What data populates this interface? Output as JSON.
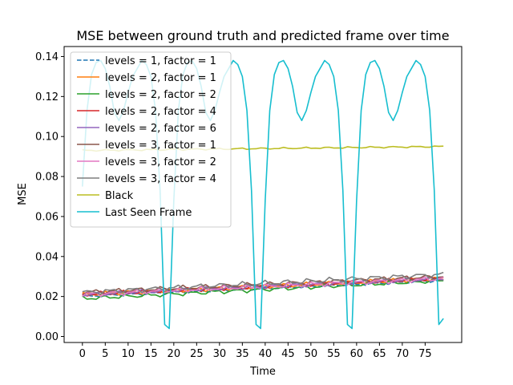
{
  "chart_data": {
    "type": "line",
    "title": "MSE between ground truth and predicted frame over time",
    "xlabel": "Time",
    "ylabel": "MSE",
    "xlim": [
      -4,
      83
    ],
    "ylim": [
      -0.003,
      0.145
    ],
    "xticks": [
      0,
      5,
      10,
      15,
      20,
      25,
      30,
      35,
      40,
      45,
      50,
      55,
      60,
      65,
      70,
      75
    ],
    "xtick_labels": [
      "0",
      "5",
      "10",
      "15",
      "20",
      "25",
      "30",
      "35",
      "40",
      "45",
      "50",
      "55",
      "60",
      "65",
      "70",
      "75"
    ],
    "yticks": [
      0.0,
      0.02,
      0.04,
      0.06,
      0.08,
      0.1,
      0.12,
      0.14
    ],
    "ytick_labels": [
      "0.00",
      "0.02",
      "0.04",
      "0.06",
      "0.08",
      "0.10",
      "0.12",
      "0.14"
    ],
    "legend_position": "upper-left",
    "grid": false,
    "series": [
      {
        "name": "levels = 1, factor = 1",
        "color": "#1f77b4",
        "dash": true,
        "start": 0.02,
        "end": 0.028,
        "amp": 0.0005
      },
      {
        "name": "levels = 2, factor = 1",
        "color": "#ff7f0e",
        "dash": false,
        "start": 0.021,
        "end": 0.029,
        "amp": 0.0008
      },
      {
        "name": "levels = 2, factor = 2",
        "color": "#2ca02c",
        "dash": false,
        "start": 0.019,
        "end": 0.028,
        "amp": 0.0008
      },
      {
        "name": "levels = 2, factor = 4",
        "color": "#d62728",
        "dash": false,
        "start": 0.021,
        "end": 0.029,
        "amp": 0.0008
      },
      {
        "name": "levels = 2, factor = 6",
        "color": "#9467bd",
        "dash": false,
        "start": 0.021,
        "end": 0.029,
        "amp": 0.0008
      },
      {
        "name": "levels = 3, factor = 1",
        "color": "#8c564b",
        "dash": false,
        "start": 0.022,
        "end": 0.03,
        "amp": 0.0009
      },
      {
        "name": "levels = 3, factor = 2",
        "color": "#e377c2",
        "dash": false,
        "start": 0.021,
        "end": 0.029,
        "amp": 0.0009
      },
      {
        "name": "levels = 3, factor = 4",
        "color": "#7f7f7f",
        "dash": false,
        "start": 0.022,
        "end": 0.031,
        "amp": 0.001
      },
      {
        "name": "Black",
        "color": "#bcbd22",
        "dash": false,
        "start": 0.093,
        "end": 0.095,
        "amp": 0.0003
      },
      {
        "name": "Last Seen Frame",
        "color": "#17becf",
        "dash": false,
        "periodic": true,
        "cycle": [
          0.004,
          0.068,
          0.113,
          0.131,
          0.137,
          0.138,
          0.134,
          0.125,
          0.112,
          0.108,
          0.113,
          0.122,
          0.13,
          0.134,
          0.138,
          0.136,
          0.13,
          0.113,
          0.073,
          0.006
        ],
        "first_value": 0.075,
        "last_value": 0.009
      }
    ]
  }
}
